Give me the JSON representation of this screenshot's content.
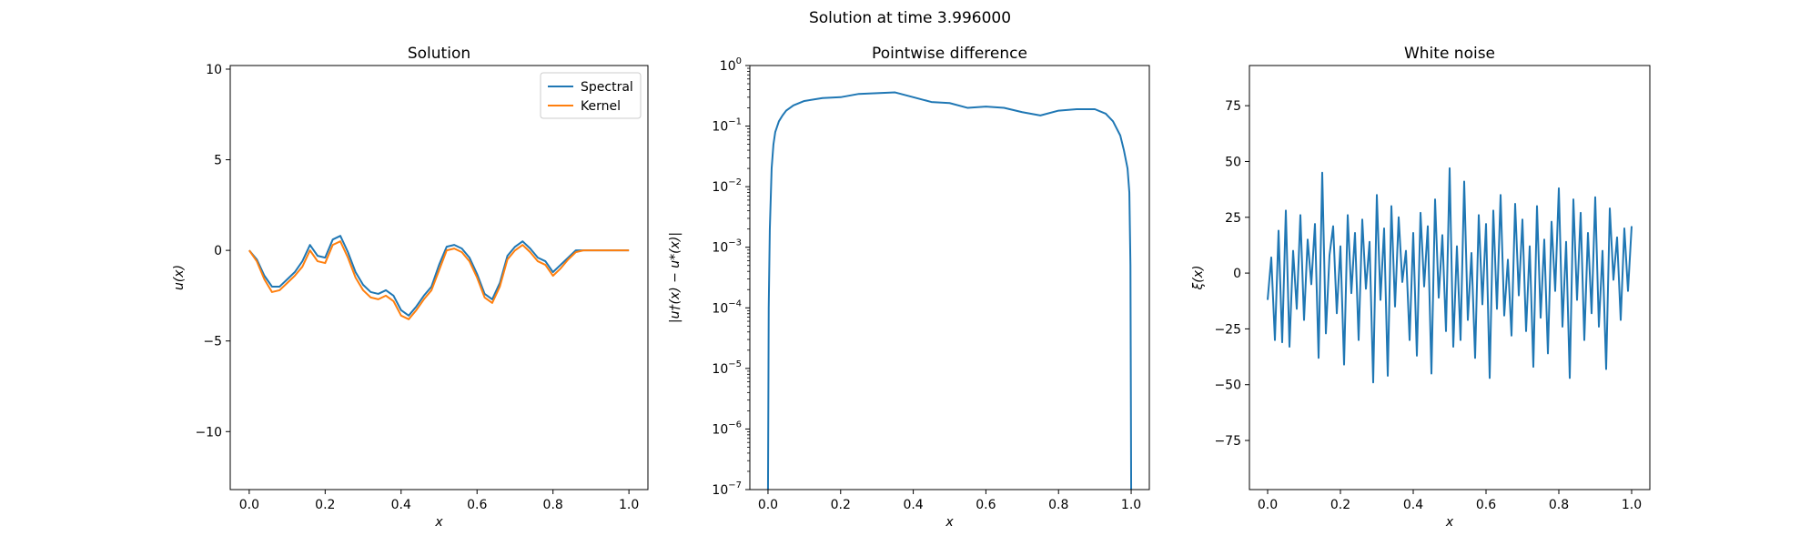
{
  "figure": {
    "suptitle": "Solution at time 3.996000"
  },
  "colors": {
    "spectral": "#1f77b4",
    "kernel": "#ff7f0e",
    "axis": "#000000"
  },
  "chart_data": [
    {
      "type": "line",
      "title": "Solution",
      "xlabel": "x",
      "ylabel": "u(x)",
      "xlim": [
        -0.05,
        1.05
      ],
      "ylim": [
        -13.2,
        10.2
      ],
      "xticks": [
        0.0,
        0.2,
        0.4,
        0.6,
        0.8,
        1.0
      ],
      "xtick_labels": [
        "0.0",
        "0.2",
        "0.4",
        "0.6",
        "0.8",
        "1.0"
      ],
      "yticks": [
        -10,
        -5,
        0,
        5,
        10
      ],
      "ytick_labels": [
        "−10",
        "−5",
        "0",
        "5",
        "10"
      ],
      "legend": {
        "placement": "top-right",
        "entries": [
          "Spectral",
          "Kernel"
        ]
      },
      "x": [
        0.0,
        0.02,
        0.04,
        0.06,
        0.08,
        0.1,
        0.12,
        0.14,
        0.16,
        0.18,
        0.2,
        0.22,
        0.24,
        0.26,
        0.28,
        0.3,
        0.32,
        0.34,
        0.36,
        0.38,
        0.4,
        0.42,
        0.44,
        0.46,
        0.48,
        0.5,
        0.52,
        0.54,
        0.56,
        0.58,
        0.6,
        0.62,
        0.64,
        0.66,
        0.68,
        0.7,
        0.72,
        0.74,
        0.76,
        0.78,
        0.8,
        0.82,
        0.84,
        0.86,
        0.88,
        0.9,
        0.92,
        0.94,
        0.96,
        0.98,
        1.0
      ],
      "series": [
        {
          "name": "Spectral",
          "color": "spectral",
          "values": [
            0.0,
            -0.5,
            -1.4,
            -2.0,
            -2.0,
            -1.6,
            -1.2,
            -0.6,
            0.3,
            -0.3,
            -0.4,
            0.6,
            0.8,
            -0.1,
            -1.2,
            -1.9,
            -2.3,
            -2.4,
            -2.2,
            -2.5,
            -3.3,
            -3.6,
            -3.1,
            -2.5,
            -2.0,
            -0.8,
            0.2,
            0.3,
            0.1,
            -0.4,
            -1.3,
            -2.4,
            -2.7,
            -1.8,
            -0.3,
            0.2,
            0.5,
            0.1,
            -0.4,
            -0.6,
            -1.2,
            -0.8,
            -0.4,
            0.0,
            0.0,
            0.0,
            0.0,
            0.0,
            0.0,
            0.0,
            0.0
          ]
        },
        {
          "name": "Kernel",
          "color": "kernel",
          "values": [
            0.0,
            -0.6,
            -1.6,
            -2.3,
            -2.2,
            -1.8,
            -1.4,
            -0.9,
            0.0,
            -0.6,
            -0.7,
            0.3,
            0.5,
            -0.4,
            -1.5,
            -2.2,
            -2.6,
            -2.7,
            -2.5,
            -2.8,
            -3.6,
            -3.8,
            -3.3,
            -2.7,
            -2.2,
            -1.1,
            0.0,
            0.1,
            -0.1,
            -0.6,
            -1.5,
            -2.6,
            -2.9,
            -2.0,
            -0.5,
            0.0,
            0.3,
            -0.1,
            -0.6,
            -0.8,
            -1.4,
            -1.0,
            -0.5,
            -0.1,
            0.0,
            0.0,
            0.0,
            0.0,
            0.0,
            0.0,
            0.0
          ]
        }
      ]
    },
    {
      "type": "line",
      "title": "Pointwise difference",
      "xlabel": "x",
      "ylabel": "|u†(x) − u*(x)|",
      "yscale": "log",
      "xlim": [
        -0.05,
        1.05
      ],
      "ylim": [
        1e-07,
        1
      ],
      "xticks": [
        0.0,
        0.2,
        0.4,
        0.6,
        0.8,
        1.0
      ],
      "xtick_labels": [
        "0.0",
        "0.2",
        "0.4",
        "0.6",
        "0.8",
        "1.0"
      ],
      "ytick_exponents": [
        -7,
        -6,
        -5,
        -4,
        -3,
        -2,
        -1,
        0
      ],
      "x": [
        0.0,
        0.002,
        0.005,
        0.01,
        0.015,
        0.02,
        0.03,
        0.04,
        0.05,
        0.07,
        0.1,
        0.15,
        0.2,
        0.25,
        0.3,
        0.35,
        0.4,
        0.45,
        0.5,
        0.55,
        0.6,
        0.65,
        0.7,
        0.75,
        0.8,
        0.85,
        0.9,
        0.93,
        0.95,
        0.97,
        0.98,
        0.99,
        0.995,
        0.998,
        1.0
      ],
      "series": [
        {
          "name": "",
          "color": "spectral",
          "values": [
            1e-07,
            0.0001,
            0.002,
            0.02,
            0.05,
            0.08,
            0.12,
            0.15,
            0.18,
            0.22,
            0.26,
            0.29,
            0.3,
            0.34,
            0.35,
            0.36,
            0.3,
            0.25,
            0.24,
            0.2,
            0.21,
            0.2,
            0.17,
            0.15,
            0.18,
            0.19,
            0.19,
            0.16,
            0.12,
            0.07,
            0.04,
            0.02,
            0.008,
            0.0005,
            1e-07
          ]
        }
      ]
    },
    {
      "type": "line",
      "title": "White noise",
      "xlabel": "x",
      "ylabel": "ξ(x)",
      "xlim": [
        -0.05,
        1.05
      ],
      "ylim": [
        -97,
        93
      ],
      "xticks": [
        0.0,
        0.2,
        0.4,
        0.6,
        0.8,
        1.0
      ],
      "xtick_labels": [
        "0.0",
        "0.2",
        "0.4",
        "0.6",
        "0.8",
        "1.0"
      ],
      "yticks": [
        -75,
        -50,
        -25,
        0,
        25,
        50,
        75
      ],
      "ytick_labels": [
        "−75",
        "−50",
        "−25",
        "0",
        "25",
        "50",
        "75"
      ],
      "x": [
        0.0,
        0.01,
        0.02,
        0.03,
        0.04,
        0.05,
        0.06,
        0.07,
        0.08,
        0.09,
        0.1,
        0.11,
        0.12,
        0.13,
        0.14,
        0.15,
        0.16,
        0.17,
        0.18,
        0.19,
        0.2,
        0.21,
        0.22,
        0.23,
        0.24,
        0.25,
        0.26,
        0.27,
        0.28,
        0.29,
        0.3,
        0.31,
        0.32,
        0.33,
        0.34,
        0.35,
        0.36,
        0.37,
        0.38,
        0.39,
        0.4,
        0.41,
        0.42,
        0.43,
        0.44,
        0.45,
        0.46,
        0.47,
        0.48,
        0.49,
        0.5,
        0.51,
        0.52,
        0.53,
        0.54,
        0.55,
        0.56,
        0.57,
        0.58,
        0.59,
        0.6,
        0.61,
        0.62,
        0.63,
        0.64,
        0.65,
        0.66,
        0.67,
        0.68,
        0.69,
        0.7,
        0.71,
        0.72,
        0.73,
        0.74,
        0.75,
        0.76,
        0.77,
        0.78,
        0.79,
        0.8,
        0.81,
        0.82,
        0.83,
        0.84,
        0.85,
        0.86,
        0.87,
        0.88,
        0.89,
        0.9,
        0.91,
        0.92,
        0.93,
        0.94,
        0.95,
        0.96,
        0.97,
        0.98,
        0.99,
        1.0
      ],
      "series": [
        {
          "name": "",
          "color": "spectral",
          "values": [
            -12,
            7,
            -30,
            19,
            -31,
            28,
            -33,
            10,
            -16,
            26,
            -21,
            15,
            -5,
            22,
            -38,
            45,
            -27,
            8,
            21,
            -18,
            12,
            -41,
            26,
            -9,
            18,
            -30,
            24,
            -7,
            14,
            -49,
            35,
            -12,
            20,
            -46,
            30,
            -15,
            25,
            -4,
            10,
            -30,
            18,
            -37,
            27,
            -6,
            21,
            -45,
            33,
            -11,
            17,
            -26,
            47,
            -33,
            12,
            -30,
            41,
            -21,
            9,
            -38,
            26,
            -14,
            22,
            -47,
            28,
            -16,
            35,
            -19,
            6,
            -28,
            31,
            -10,
            24,
            -26,
            12,
            -42,
            30,
            -20,
            15,
            -36,
            23,
            -8,
            38,
            -24,
            14,
            -47,
            33,
            -12,
            27,
            -30,
            18,
            -18,
            34,
            -24,
            10,
            -43,
            29,
            -3,
            16,
            -21,
            20,
            -8,
            21
          ]
        }
      ]
    }
  ]
}
